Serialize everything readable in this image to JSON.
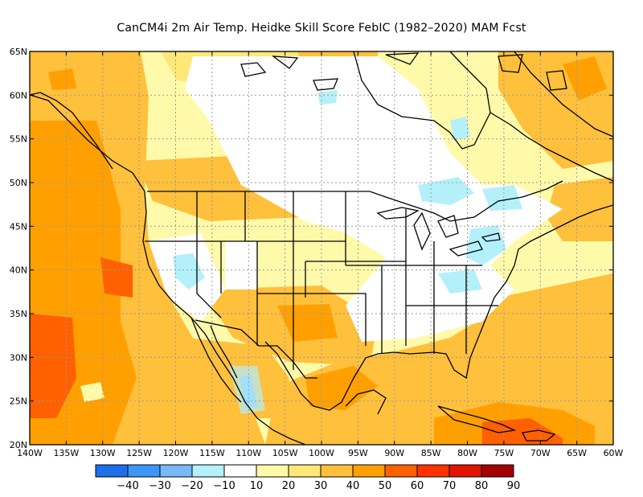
{
  "title": "CanCM4i  2m Air Temp. Heidke Skill Score FebIC (1982–2020) MAM Fcst",
  "map": {
    "lon_range": [
      -140,
      -60
    ],
    "lat_range": [
      20,
      65
    ],
    "lat_labels": [
      "20N",
      "25N",
      "30N",
      "35N",
      "40N",
      "45N",
      "50N",
      "55N",
      "60N",
      "65N"
    ],
    "lon_labels": [
      "140W",
      "135W",
      "130W",
      "125W",
      "120W",
      "115W",
      "110W",
      "105W",
      "100W",
      "95W",
      "90W",
      "85W",
      "80W",
      "75W",
      "70W",
      "65W",
      "60W"
    ],
    "grid": "dotted"
  },
  "colorbar": {
    "labels": [
      "−40",
      "−30",
      "−20",
      "−10",
      "10",
      "20",
      "30",
      "40",
      "50",
      "60",
      "70",
      "80",
      "90"
    ],
    "colors": [
      "#1e6eeb",
      "#3c96f5",
      "#78b9fa",
      "#b4f0fa",
      "#ffffff",
      "#fffaaa",
      "#ffe878",
      "#ffc03c",
      "#ffa000",
      "#ff6000",
      "#ff3200",
      "#e11400",
      "#a50000"
    ]
  }
}
